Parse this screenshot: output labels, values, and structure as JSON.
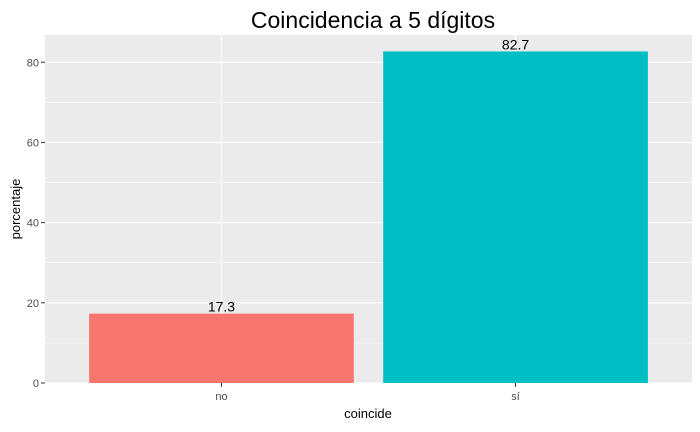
{
  "chart_data": {
    "type": "bar",
    "title": "Coincidencia a 5 dígitos",
    "xlabel": "coincide",
    "ylabel": "porcentaje",
    "categories": [
      "no",
      "sí"
    ],
    "values": [
      17.3,
      82.7
    ],
    "value_labels": [
      "17.3",
      "82.7"
    ],
    "colors": [
      "#F8766D",
      "#00BFC4"
    ],
    "ylim": [
      0,
      86.8
    ],
    "yticks": [
      0,
      20,
      40,
      60,
      80
    ],
    "ytick_labels": [
      "0",
      "20",
      "40",
      "60",
      "80"
    ],
    "grid": true,
    "legend": "none",
    "panel_background": "#EBEBEB"
  }
}
